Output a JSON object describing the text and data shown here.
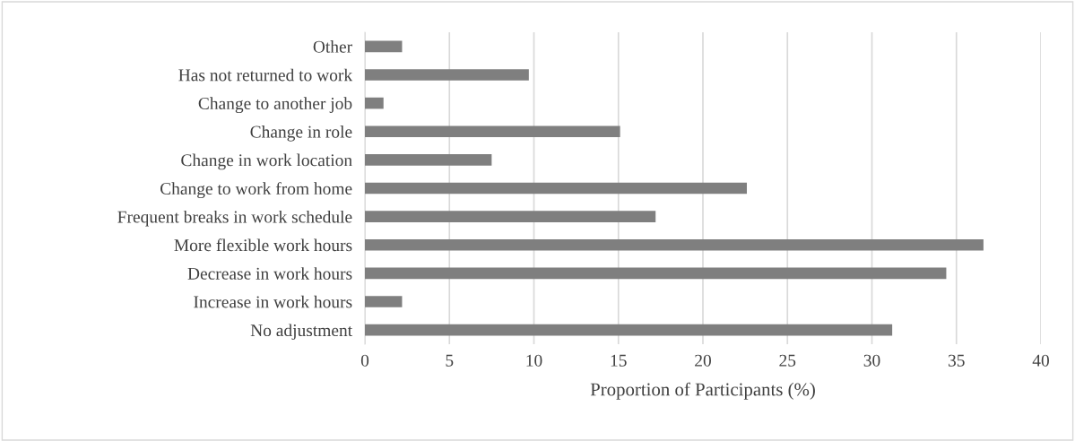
{
  "chart_data": {
    "type": "bar",
    "orientation": "horizontal",
    "xlabel": "Proportion of Participants (%)",
    "categories": [
      "Other",
      "Has not returned to work",
      "Change to another job",
      "Change in role",
      "Change in work location",
      "Change to work from home",
      "Frequent breaks in work schedule",
      "More flexible work hours",
      "Decrease in work hours",
      "Increase in work hours",
      "No adjustment"
    ],
    "values": [
      2.2,
      9.7,
      1.1,
      15.1,
      7.5,
      22.6,
      17.2,
      36.6,
      34.4,
      2.2,
      31.2
    ],
    "color": "#7f7f7f",
    "xlim": [
      0,
      40
    ],
    "xticks": [
      0,
      5,
      10,
      15,
      20,
      25,
      30,
      35,
      40
    ],
    "grid": "x"
  }
}
